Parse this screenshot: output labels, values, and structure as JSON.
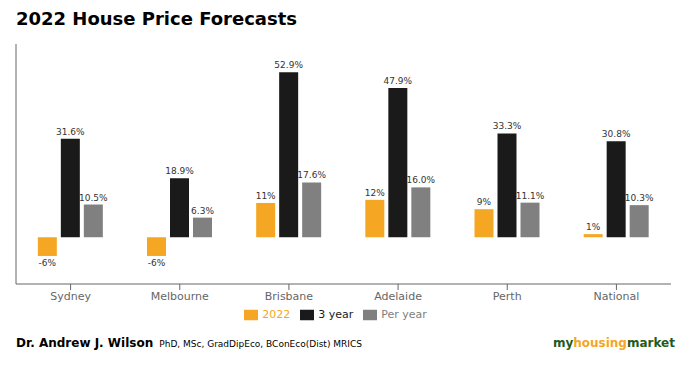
{
  "chart_data": {
    "type": "bar",
    "title": "2022 House Price Forecasts",
    "categories": [
      "Sydney",
      "Melbourne",
      "Brisbane",
      "Adelaide",
      "Perth",
      "National"
    ],
    "series": [
      {
        "name": "2022",
        "color": "#F5A623",
        "values": [
          -6,
          -6,
          11,
          12,
          9,
          1
        ],
        "value_labels": [
          "-6%",
          "-6%",
          "11%",
          "12%",
          "9%",
          "1%"
        ]
      },
      {
        "name": "3 year",
        "color": "#1A1A1A",
        "values": [
          31.6,
          18.9,
          52.9,
          47.9,
          33.3,
          30.8
        ],
        "value_labels": [
          "31.6%",
          "18.9%",
          "52.9%",
          "47.9%",
          "33.3%",
          "30.8%"
        ]
      },
      {
        "name": "Per year",
        "color": "#808080",
        "values": [
          10.5,
          6.3,
          17.6,
          16.0,
          11.1,
          10.3
        ],
        "value_labels": [
          "10.5%",
          "6.3%",
          "17.6%",
          "16.0%",
          "11.1%",
          "10.3%"
        ]
      }
    ],
    "ylim": [
      -15,
      62
    ],
    "data_labels": true,
    "tick_labels": "x",
    "grid": false,
    "legend": "bottom",
    "annotations": [
      {
        "text": "Dr. Andrew J. Wilson"
      },
      {
        "text": "PhD, MSc, GradDipEco, BConEco(Dist) MRICS"
      },
      {
        "text": "my",
        "color": "#1D5C1D"
      },
      {
        "text": "housing",
        "color": "#F5A623"
      },
      {
        "text": "market",
        "color": "#1D5C1D"
      }
    ]
  }
}
